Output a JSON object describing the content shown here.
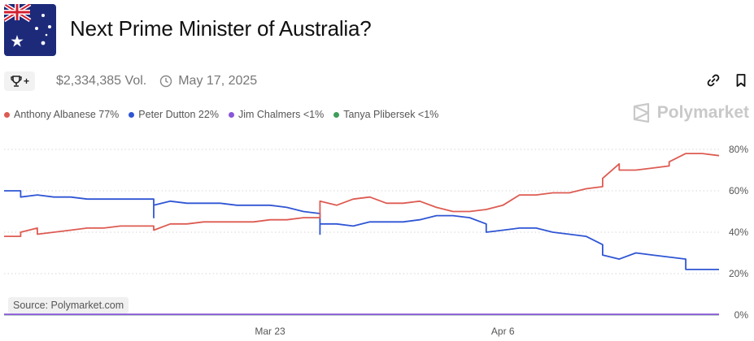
{
  "header": {
    "title": "Next Prime Minister of Australia?",
    "volume": "$2,334,385 Vol.",
    "date": "May 17, 2025",
    "trophy_plus": "+"
  },
  "brand": {
    "name": "Polymarket"
  },
  "source": "Source: Polymarket.com",
  "icons": [
    "australia-flag",
    "trophy-icon",
    "clock-icon",
    "link-icon",
    "bookmark-icon",
    "polymarket-logo"
  ],
  "chart_data": {
    "type": "line",
    "yticks": [
      "80%",
      "60%",
      "40%",
      "20%",
      "0%"
    ],
    "ytick_values": [
      80,
      60,
      40,
      20,
      0
    ],
    "ylim": [
      0,
      85
    ],
    "xlim": [
      "2025-03-07",
      "2025-04-19"
    ],
    "xticks": [
      {
        "label": "Mar 23",
        "date": "2025-03-23"
      },
      {
        "label": "Apr 6",
        "date": "2025-04-06"
      }
    ],
    "grid": "horizontal-dotted",
    "legend_position": "top-left",
    "series": [
      {
        "name": "Anthony Albanese 77%",
        "color": "#dd5b52",
        "points": [
          [
            "2025-03-07",
            38
          ],
          [
            "2025-03-08",
            38
          ],
          [
            "2025-03-08",
            40
          ],
          [
            "2025-03-09",
            42
          ],
          [
            "2025-03-09",
            39
          ],
          [
            "2025-03-10",
            40
          ],
          [
            "2025-03-11",
            41
          ],
          [
            "2025-03-12",
            42
          ],
          [
            "2025-03-13",
            42
          ],
          [
            "2025-03-14",
            43
          ],
          [
            "2025-03-15",
            43
          ],
          [
            "2025-03-16",
            43
          ],
          [
            "2025-03-16",
            41
          ],
          [
            "2025-03-17",
            44
          ],
          [
            "2025-03-18",
            44
          ],
          [
            "2025-03-19",
            45
          ],
          [
            "2025-03-20",
            45
          ],
          [
            "2025-03-21",
            45
          ],
          [
            "2025-03-22",
            45
          ],
          [
            "2025-03-23",
            46
          ],
          [
            "2025-03-24",
            46
          ],
          [
            "2025-03-25",
            47
          ],
          [
            "2025-03-26",
            47
          ],
          [
            "2025-03-26",
            55
          ],
          [
            "2025-03-27",
            53
          ],
          [
            "2025-03-28",
            56
          ],
          [
            "2025-03-29",
            57
          ],
          [
            "2025-03-30",
            54
          ],
          [
            "2025-03-31",
            54
          ],
          [
            "2025-04-01",
            55
          ],
          [
            "2025-04-02",
            52
          ],
          [
            "2025-04-03",
            50
          ],
          [
            "2025-04-04",
            50
          ],
          [
            "2025-04-05",
            51
          ],
          [
            "2025-04-06",
            53
          ],
          [
            "2025-04-07",
            58
          ],
          [
            "2025-04-08",
            58
          ],
          [
            "2025-04-09",
            59
          ],
          [
            "2025-04-10",
            59
          ],
          [
            "2025-04-11",
            61
          ],
          [
            "2025-04-12",
            62
          ],
          [
            "2025-04-12",
            66
          ],
          [
            "2025-04-13",
            73
          ],
          [
            "2025-04-13",
            70
          ],
          [
            "2025-04-14",
            70
          ],
          [
            "2025-04-15",
            71
          ],
          [
            "2025-04-16",
            72
          ],
          [
            "2025-04-16",
            74
          ],
          [
            "2025-04-17",
            78
          ],
          [
            "2025-04-18",
            78
          ],
          [
            "2025-04-19",
            77
          ]
        ]
      },
      {
        "name": "Peter Dutton 22%",
        "color": "#2f55d4",
        "points": [
          [
            "2025-03-07",
            60
          ],
          [
            "2025-03-08",
            60
          ],
          [
            "2025-03-08",
            57
          ],
          [
            "2025-03-09",
            58
          ],
          [
            "2025-03-10",
            57
          ],
          [
            "2025-03-11",
            57
          ],
          [
            "2025-03-12",
            56
          ],
          [
            "2025-03-13",
            56
          ],
          [
            "2025-03-14",
            56
          ],
          [
            "2025-03-15",
            56
          ],
          [
            "2025-03-16",
            56
          ],
          [
            "2025-03-16",
            47
          ],
          [
            "2025-03-16",
            53
          ],
          [
            "2025-03-17",
            55
          ],
          [
            "2025-03-18",
            54
          ],
          [
            "2025-03-19",
            54
          ],
          [
            "2025-03-20",
            54
          ],
          [
            "2025-03-21",
            53
          ],
          [
            "2025-03-22",
            53
          ],
          [
            "2025-03-23",
            53
          ],
          [
            "2025-03-24",
            52
          ],
          [
            "2025-03-25",
            50
          ],
          [
            "2025-03-26",
            49
          ],
          [
            "2025-03-26",
            39
          ],
          [
            "2025-03-26",
            44
          ],
          [
            "2025-03-27",
            44
          ],
          [
            "2025-03-28",
            43
          ],
          [
            "2025-03-29",
            45
          ],
          [
            "2025-03-30",
            45
          ],
          [
            "2025-03-31",
            45
          ],
          [
            "2025-04-01",
            46
          ],
          [
            "2025-04-02",
            48
          ],
          [
            "2025-04-03",
            48
          ],
          [
            "2025-04-04",
            47
          ],
          [
            "2025-04-05",
            44
          ],
          [
            "2025-04-05",
            40
          ],
          [
            "2025-04-06",
            41
          ],
          [
            "2025-04-07",
            42
          ],
          [
            "2025-04-08",
            42
          ],
          [
            "2025-04-09",
            40
          ],
          [
            "2025-04-10",
            39
          ],
          [
            "2025-04-11",
            38
          ],
          [
            "2025-04-12",
            34
          ],
          [
            "2025-04-12",
            29
          ],
          [
            "2025-04-13",
            27
          ],
          [
            "2025-04-14",
            30
          ],
          [
            "2025-04-15",
            29
          ],
          [
            "2025-04-16",
            28
          ],
          [
            "2025-04-17",
            27
          ],
          [
            "2025-04-17",
            22
          ],
          [
            "2025-04-18",
            22
          ],
          [
            "2025-04-19",
            22
          ]
        ]
      },
      {
        "name": "Jim Chalmers <1%",
        "color": "#8a56d8",
        "points": [
          [
            "2025-03-07",
            0.3
          ],
          [
            "2025-04-19",
            0.3
          ]
        ]
      },
      {
        "name": "Tanya Plibersek <1%",
        "color": "#3e9d5a",
        "points": [
          [
            "2025-03-07",
            0.2
          ],
          [
            "2025-04-19",
            0.2
          ]
        ]
      }
    ]
  }
}
